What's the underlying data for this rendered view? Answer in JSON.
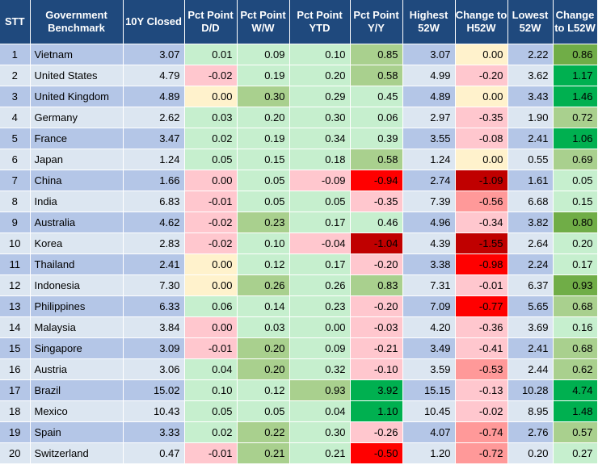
{
  "headers": [
    "STT",
    "Government Benchmark",
    "10Y Closed",
    "Pct Point D/D",
    "Pct Point W/W",
    "Pct Point YTD",
    "Pct Point Y/Y",
    "Highest 52W",
    "Change to H52W",
    "Lowest 52W",
    "Change to L52W"
  ],
  "rows": [
    {
      "stt": "1",
      "country": "Vietnam",
      "closed": "3.07",
      "dd": "0.01",
      "ww": "0.09",
      "ytd": "0.10",
      "yy": "0.85",
      "high": "3.07",
      "chigh": "0.00",
      "low": "2.22",
      "clow": "0.86"
    },
    {
      "stt": "2",
      "country": "United States",
      "closed": "4.79",
      "dd": "-0.02",
      "ww": "0.19",
      "ytd": "0.20",
      "yy": "0.58",
      "high": "4.99",
      "chigh": "-0.20",
      "low": "3.62",
      "clow": "1.17"
    },
    {
      "stt": "3",
      "country": "United Kingdom",
      "closed": "4.89",
      "dd": "0.00",
      "ww": "0.30",
      "ytd": "0.29",
      "yy": "0.45",
      "high": "4.89",
      "chigh": "0.00",
      "low": "3.43",
      "clow": "1.46"
    },
    {
      "stt": "4",
      "country": "Germany",
      "closed": "2.62",
      "dd": "0.03",
      "ww": "0.20",
      "ytd": "0.30",
      "yy": "0.06",
      "high": "2.97",
      "chigh": "-0.35",
      "low": "1.90",
      "clow": "0.72"
    },
    {
      "stt": "5",
      "country": "France",
      "closed": "3.47",
      "dd": "0.02",
      "ww": "0.19",
      "ytd": "0.34",
      "yy": "0.39",
      "high": "3.55",
      "chigh": "-0.08",
      "low": "2.41",
      "clow": "1.06"
    },
    {
      "stt": "6",
      "country": "Japan",
      "closed": "1.24",
      "dd": "0.05",
      "ww": "0.15",
      "ytd": "0.18",
      "yy": "0.58",
      "high": "1.24",
      "chigh": "0.00",
      "low": "0.55",
      "clow": "0.69"
    },
    {
      "stt": "7",
      "country": "China",
      "closed": "1.66",
      "dd": "0.00",
      "ww": "0.05",
      "ytd": "-0.09",
      "yy": "-0.94",
      "high": "2.74",
      "chigh": "-1.09",
      "low": "1.61",
      "clow": "0.05"
    },
    {
      "stt": "8",
      "country": "India",
      "closed": "6.83",
      "dd": "-0.01",
      "ww": "0.05",
      "ytd": "0.05",
      "yy": "-0.35",
      "high": "7.39",
      "chigh": "-0.56",
      "low": "6.68",
      "clow": "0.15"
    },
    {
      "stt": "9",
      "country": "Australia",
      "closed": "4.62",
      "dd": "-0.02",
      "ww": "0.23",
      "ytd": "0.17",
      "yy": "0.46",
      "high": "4.96",
      "chigh": "-0.34",
      "low": "3.82",
      "clow": "0.80"
    },
    {
      "stt": "10",
      "country": "Korea",
      "closed": "2.83",
      "dd": "-0.02",
      "ww": "0.10",
      "ytd": "-0.04",
      "yy": "-1.04",
      "high": "4.39",
      "chigh": "-1.55",
      "low": "2.64",
      "clow": "0.20"
    },
    {
      "stt": "11",
      "country": "Thailand",
      "closed": "2.41",
      "dd": "0.00",
      "ww": "0.12",
      "ytd": "0.17",
      "yy": "-0.20",
      "high": "3.38",
      "chigh": "-0.98",
      "low": "2.24",
      "clow": "0.17"
    },
    {
      "stt": "12",
      "country": "Indonesia",
      "closed": "7.30",
      "dd": "0.00",
      "ww": "0.26",
      "ytd": "0.26",
      "yy": "0.83",
      "high": "7.31",
      "chigh": "-0.01",
      "low": "6.37",
      "clow": "0.93"
    },
    {
      "stt": "13",
      "country": "Philippines",
      "closed": "6.33",
      "dd": "0.06",
      "ww": "0.14",
      "ytd": "0.23",
      "yy": "-0.20",
      "high": "7.09",
      "chigh": "-0.77",
      "low": "5.65",
      "clow": "0.68"
    },
    {
      "stt": "14",
      "country": "Malaysia",
      "closed": "3.84",
      "dd": "0.00",
      "ww": "0.03",
      "ytd": "0.00",
      "yy": "-0.03",
      "high": "4.20",
      "chigh": "-0.36",
      "low": "3.69",
      "clow": "0.16"
    },
    {
      "stt": "15",
      "country": "Singapore",
      "closed": "3.09",
      "dd": "-0.01",
      "ww": "0.20",
      "ytd": "0.09",
      "yy": "-0.21",
      "high": "3.49",
      "chigh": "-0.41",
      "low": "2.41",
      "clow": "0.68"
    },
    {
      "stt": "16",
      "country": "Austria",
      "closed": "3.06",
      "dd": "0.04",
      "ww": "0.20",
      "ytd": "0.32",
      "yy": "-0.10",
      "high": "3.59",
      "chigh": "-0.53",
      "low": "2.44",
      "clow": "0.62"
    },
    {
      "stt": "17",
      "country": "Brazil",
      "closed": "15.02",
      "dd": "0.10",
      "ww": "0.12",
      "ytd": "0.93",
      "yy": "3.92",
      "high": "15.15",
      "chigh": "-0.13",
      "low": "10.28",
      "clow": "4.74"
    },
    {
      "stt": "18",
      "country": "Mexico",
      "closed": "10.43",
      "dd": "0.05",
      "ww": "0.05",
      "ytd": "0.04",
      "yy": "1.10",
      "high": "10.45",
      "chigh": "-0.02",
      "low": "8.95",
      "clow": "1.48"
    },
    {
      "stt": "19",
      "country": "Spain",
      "closed": "3.33",
      "dd": "0.02",
      "ww": "0.22",
      "ytd": "0.30",
      "yy": "-0.26",
      "high": "4.07",
      "chigh": "-0.74",
      "low": "2.76",
      "clow": "0.57"
    },
    {
      "stt": "20",
      "country": "Switzerland",
      "closed": "0.47",
      "dd": "-0.01",
      "ww": "0.21",
      "ytd": "0.21",
      "yy": "-0.50",
      "high": "1.20",
      "chigh": "-0.72",
      "low": "0.20",
      "clow": "0.27"
    }
  ],
  "colors": {
    "header_bg": "#1f497d",
    "row_odd": "#b4c6e7",
    "row_even": "#dce6f1",
    "pos_light": "#c6efce",
    "pos_mid": "#a9d08e",
    "pos_strong": "#70ad47",
    "pos_max": "#00b050",
    "neg_light": "#ffc7ce",
    "neg_mid": "#ff9999",
    "neg_strong": "#ff0000",
    "neg_max": "#c00000",
    "neutral": "#fff2cc"
  },
  "cell_fills": {
    "dd": [
      "pos_light",
      "neg_light",
      "neutral",
      "pos_light",
      "pos_light",
      "pos_light",
      "neg_light",
      "neg_light",
      "neg_light",
      "neg_light",
      "neutral",
      "neutral",
      "pos_light",
      "neg_light",
      "neg_light",
      "pos_light",
      "pos_light",
      "pos_light",
      "pos_light",
      "neg_light"
    ],
    "ww": [
      "pos_light",
      "pos_light",
      "pos_mid",
      "pos_light",
      "pos_light",
      "pos_light",
      "pos_light",
      "pos_light",
      "pos_mid",
      "pos_light",
      "pos_light",
      "pos_mid",
      "pos_light",
      "pos_light",
      "pos_mid",
      "pos_mid",
      "pos_light",
      "pos_light",
      "pos_mid",
      "pos_mid"
    ],
    "ytd": [
      "pos_light",
      "pos_light",
      "pos_light",
      "pos_light",
      "pos_light",
      "pos_light",
      "neg_light",
      "pos_light",
      "pos_light",
      "neg_light",
      "pos_light",
      "pos_light",
      "pos_light",
      "pos_light",
      "pos_light",
      "pos_light",
      "pos_mid",
      "pos_light",
      "pos_light",
      "pos_light"
    ],
    "yy": [
      "pos_mid",
      "pos_mid",
      "pos_light",
      "pos_light",
      "pos_light",
      "pos_mid",
      "neg_strong",
      "neg_light",
      "pos_light",
      "neg_max",
      "neg_light",
      "pos_mid",
      "neg_light",
      "neg_light",
      "neg_light",
      "neg_light",
      "pos_max",
      "pos_max",
      "neg_light",
      "neg_strong"
    ],
    "chigh": [
      "neutral",
      "neg_light",
      "neutral",
      "neg_light",
      "neg_light",
      "neutral",
      "neg_max",
      "neg_mid",
      "neg_light",
      "neg_max",
      "neg_strong",
      "neg_light",
      "neg_strong",
      "neg_light",
      "neg_light",
      "neg_mid",
      "neg_light",
      "neg_light",
      "neg_mid",
      "neg_mid"
    ],
    "clow": [
      "pos_strong",
      "pos_max",
      "pos_max",
      "pos_mid",
      "pos_max",
      "pos_mid",
      "pos_light",
      "pos_light",
      "pos_strong",
      "pos_light",
      "pos_light",
      "pos_strong",
      "pos_mid",
      "pos_light",
      "pos_mid",
      "pos_mid",
      "pos_max",
      "pos_max",
      "pos_mid",
      "pos_light"
    ]
  }
}
